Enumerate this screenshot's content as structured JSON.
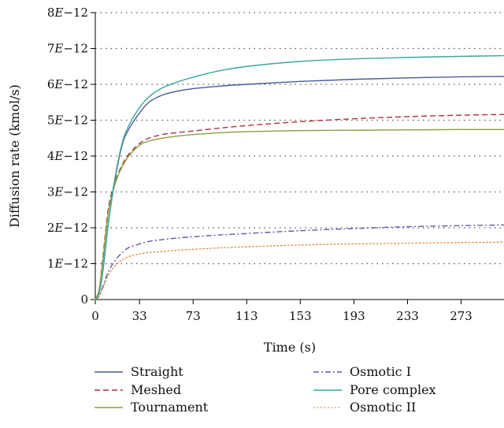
{
  "chart_data": {
    "type": "line",
    "title": "",
    "xlabel": "Time (s)",
    "ylabel": "Diffusion rate (kmol/s)",
    "xlim": [
      0,
      305
    ],
    "ylim": [
      0,
      8e-12
    ],
    "x_ticks": [
      0,
      33,
      73,
      113,
      153,
      193,
      233,
      273
    ],
    "x_tick_labels": [
      "0",
      "33",
      "73",
      "113",
      "153",
      "193",
      "233",
      "273"
    ],
    "y_ticks": [
      0,
      1e-12,
      2e-12,
      3e-12,
      4e-12,
      5e-12,
      6e-12,
      7e-12,
      8e-12
    ],
    "y_tick_labels": [
      "0",
      "1E−12",
      "2E−12",
      "3E−12",
      "4E−12",
      "5E−12",
      "6E−12",
      "7E−12",
      "8E−12"
    ],
    "grid": "horizontal dotted",
    "legend_position": "bottom",
    "series": [
      {
        "name": "Straight",
        "color": "#4a5a9c",
        "dash": "solid",
        "x": [
          0,
          3,
          6,
          10,
          15,
          20,
          25,
          33,
          40,
          50,
          60,
          73,
          93,
          113,
          153,
          193,
          233,
          273,
          305
        ],
        "y": [
          0,
          2e-13,
          9e-13,
          2.2e-12,
          3.4e-12,
          4.3e-12,
          4.75e-12,
          5.2e-12,
          5.5e-12,
          5.7e-12,
          5.8e-12,
          5.88e-12,
          5.95e-12,
          6e-12,
          6.08e-12,
          6.14e-12,
          6.18e-12,
          6.21e-12,
          6.22e-12
        ]
      },
      {
        "name": "Meshed",
        "color": "#b03040",
        "dash": "dashed",
        "x": [
          0,
          3,
          6,
          10,
          15,
          20,
          25,
          33,
          40,
          50,
          60,
          73,
          93,
          113,
          153,
          193,
          233,
          273,
          305
        ],
        "y": [
          0,
          3e-13,
          1.3e-12,
          2.6e-12,
          3.3e-12,
          3.75e-12,
          4.05e-12,
          4.35e-12,
          4.5e-12,
          4.6e-12,
          4.65e-12,
          4.7e-12,
          4.78e-12,
          4.85e-12,
          4.96e-12,
          5.04e-12,
          5.1e-12,
          5.14e-12,
          5.16e-12
        ]
      },
      {
        "name": "Tournament",
        "color": "#8aa040",
        "dash": "solid",
        "x": [
          0,
          3,
          6,
          10,
          15,
          20,
          25,
          33,
          40,
          50,
          60,
          73,
          93,
          113,
          153,
          193,
          233,
          273,
          305
        ],
        "y": [
          0,
          3e-13,
          1.2e-12,
          2.5e-12,
          3.25e-12,
          3.7e-12,
          4e-12,
          4.3e-12,
          4.42e-12,
          4.5e-12,
          4.55e-12,
          4.6e-12,
          4.65e-12,
          4.68e-12,
          4.71e-12,
          4.72e-12,
          4.73e-12,
          4.74e-12,
          4.74e-12
        ]
      },
      {
        "name": "Osmotic I",
        "color": "#5a5aa8",
        "dash": "dashdot",
        "x": [
          0,
          3,
          6,
          10,
          15,
          20,
          25,
          33,
          40,
          50,
          60,
          73,
          93,
          113,
          153,
          193,
          233,
          273,
          305
        ],
        "y": [
          0,
          1e-13,
          4e-13,
          8e-13,
          1.1e-12,
          1.3e-12,
          1.45e-12,
          1.55e-12,
          1.62e-12,
          1.67e-12,
          1.71e-12,
          1.75e-12,
          1.8e-12,
          1.84e-12,
          1.92e-12,
          1.98e-12,
          2.03e-12,
          2.06e-12,
          2.08e-12
        ]
      },
      {
        "name": "Pore complex",
        "color": "#3aa898",
        "dash": "solid",
        "x": [
          0,
          3,
          6,
          10,
          15,
          20,
          25,
          33,
          40,
          50,
          60,
          73,
          93,
          113,
          153,
          193,
          233,
          273,
          305
        ],
        "y": [
          0,
          2e-13,
          9e-13,
          2.2e-12,
          3.45e-12,
          4.35e-12,
          4.85e-12,
          5.35e-12,
          5.65e-12,
          5.9e-12,
          6.05e-12,
          6.2e-12,
          6.38e-12,
          6.5e-12,
          6.64e-12,
          6.71e-12,
          6.75e-12,
          6.78e-12,
          6.8e-12
        ]
      },
      {
        "name": "Osmotic II",
        "color": "#e0904a",
        "dash": "dotted",
        "x": [
          0,
          3,
          6,
          10,
          15,
          20,
          25,
          33,
          40,
          50,
          60,
          73,
          93,
          113,
          153,
          193,
          233,
          273,
          305
        ],
        "y": [
          0,
          1e-13,
          3.5e-13,
          7e-13,
          9.5e-13,
          1.1e-12,
          1.2e-12,
          1.27e-12,
          1.31e-12,
          1.34e-12,
          1.37e-12,
          1.4e-12,
          1.44e-12,
          1.47e-12,
          1.52e-12,
          1.55e-12,
          1.57e-12,
          1.59e-12,
          1.6e-12
        ]
      }
    ]
  }
}
